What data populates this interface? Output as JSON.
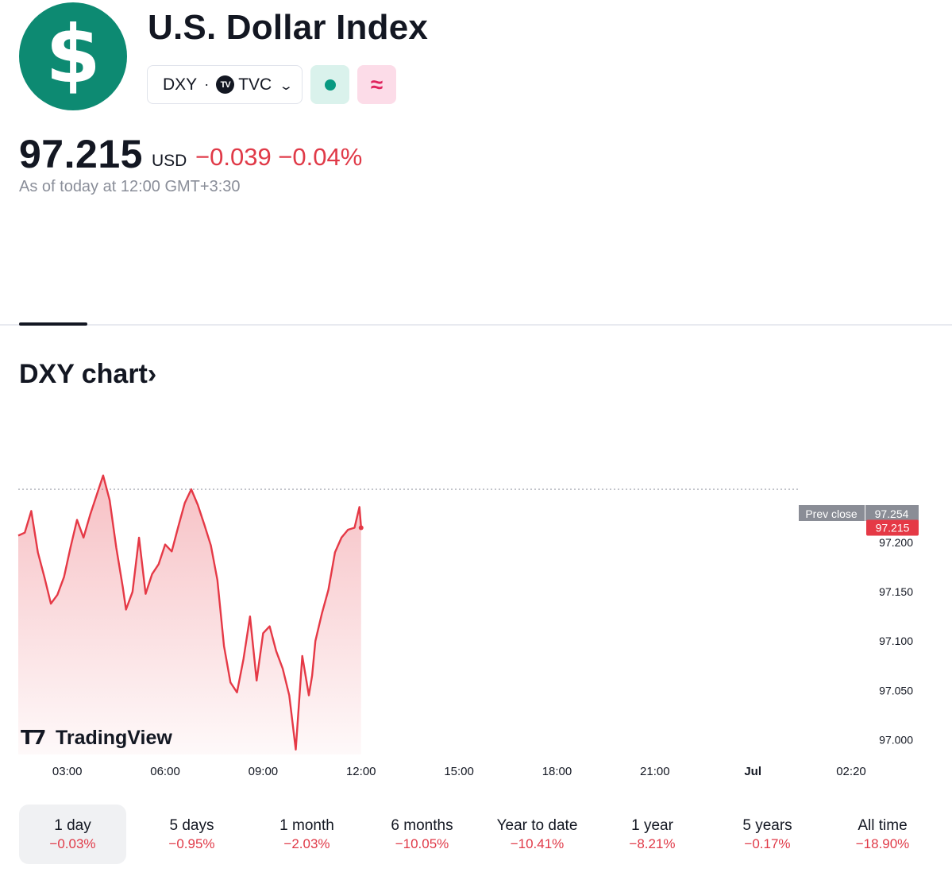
{
  "header": {
    "logo_symbol": "$",
    "title": "U.S. Dollar Index",
    "ticker": "DXY",
    "separator": "·",
    "exchange_logo": "TV",
    "exchange": "TVC",
    "dropdown_icon": "chevron-down-icon",
    "wave_symbol": "≈"
  },
  "quote": {
    "price": "97.215",
    "currency": "USD",
    "change": "−0.039 −0.04%",
    "as_of": "As of today at 12:00 GMT+3:30"
  },
  "section": {
    "chart_title": "DXY chart›"
  },
  "colors": {
    "logo": "#0d8a72",
    "negative": "#e03a48",
    "line": "#e53946",
    "live": "#089981"
  },
  "chart_data": {
    "type": "area",
    "x_ticks": [
      "03:00",
      "06:00",
      "09:00",
      "12:00",
      "15:00",
      "18:00",
      "21:00",
      "Jul",
      "02:20"
    ],
    "y_ticks": [
      "97.200",
      "97.150",
      "97.100",
      "97.050",
      "97.000"
    ],
    "ylim": [
      96.985,
      97.275
    ],
    "session_hours": [
      1.5,
      25.333
    ],
    "prev_close": {
      "label": "Prev close",
      "value": "97.254"
    },
    "last_value": "97.215",
    "watermark": "TradingView",
    "series": [
      {
        "x": [
          1.5,
          1.7,
          1.9,
          2.1,
          2.3,
          2.5,
          2.7,
          2.9,
          3.1,
          3.3,
          3.5,
          3.7,
          3.9,
          4.1,
          4.3,
          4.5,
          4.7,
          4.8,
          5.0,
          5.2,
          5.4,
          5.6,
          5.8,
          6.0,
          6.2,
          6.4,
          6.6,
          6.8,
          7.0,
          7.2,
          7.4,
          7.6,
          7.8,
          8.0,
          8.2,
          8.4,
          8.6,
          8.8,
          9.0,
          9.2,
          9.4,
          9.6,
          9.8,
          10.0,
          10.2,
          10.4,
          10.5,
          10.6,
          10.8,
          11.0,
          11.2,
          11.4,
          11.6,
          11.8,
          11.95,
          12.0
        ],
        "values": [
          97.207,
          97.21,
          97.232,
          97.19,
          97.165,
          97.138,
          97.147,
          97.165,
          97.195,
          97.223,
          97.205,
          97.228,
          97.248,
          97.268,
          97.243,
          97.195,
          97.155,
          97.132,
          97.15,
          97.205,
          97.148,
          97.168,
          97.178,
          97.198,
          97.191,
          97.216,
          97.24,
          97.254,
          97.238,
          97.218,
          97.197,
          97.162,
          97.095,
          97.058,
          97.048,
          97.082,
          97.125,
          97.06,
          97.108,
          97.115,
          97.09,
          97.072,
          97.045,
          96.99,
          97.085,
          97.045,
          97.065,
          97.1,
          97.128,
          97.152,
          97.19,
          97.205,
          97.213,
          97.215,
          97.236,
          97.215
        ],
        "color": "#e53946"
      }
    ]
  },
  "ranges": [
    {
      "label": "1 day",
      "value": "−0.03%",
      "active": true
    },
    {
      "label": "5 days",
      "value": "−0.95%"
    },
    {
      "label": "1 month",
      "value": "−2.03%"
    },
    {
      "label": "6 months",
      "value": "−10.05%"
    },
    {
      "label": "Year to date",
      "value": "−10.41%"
    },
    {
      "label": "1 year",
      "value": "−8.21%"
    },
    {
      "label": "5 years",
      "value": "−0.17%"
    },
    {
      "label": "All time",
      "value": "−18.90%"
    }
  ]
}
